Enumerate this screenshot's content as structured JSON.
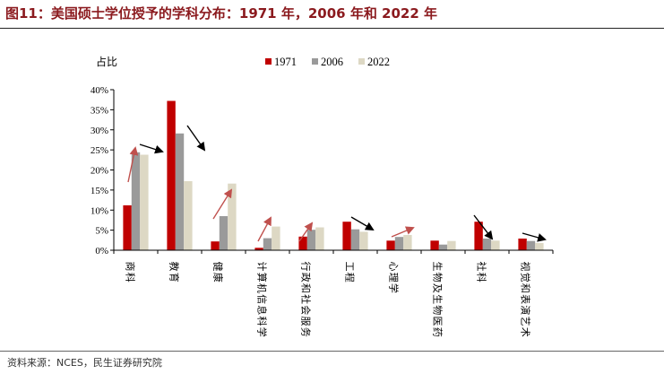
{
  "header": {
    "title": "图11：美国硕士学位授予的学科分布：1971 年，2006 年和 2022 年"
  },
  "footer": {
    "source": "资料来源：NCES，民生证券研究院"
  },
  "colors": {
    "title": "#8b1a1e",
    "s1971": "#c00000",
    "s2006": "#9a9a9a",
    "s2022": "#ddd8c4",
    "arrow_up": "#c0504d",
    "arrow_down": "#000000"
  },
  "chart_data": {
    "type": "bar",
    "title": "",
    "xlabel": "",
    "ylabel": "占比",
    "ylim": [
      0,
      40
    ],
    "y_ticks": [
      "0%",
      "5%",
      "10%",
      "15%",
      "20%",
      "25%",
      "30%",
      "35%",
      "40%"
    ],
    "grid": false,
    "legend_position": "top",
    "categories": [
      "商科",
      "教育",
      "健康",
      "计算机信息科学",
      "行政和社会服务",
      "工程",
      "心理学",
      "生物及生物医药",
      "社科",
      "视觉和表演艺术"
    ],
    "series": [
      {
        "name": "1971",
        "color": "#c00000",
        "values": [
          11.2,
          37.2,
          2.2,
          0.6,
          3.4,
          7.1,
          2.4,
          2.4,
          7.1,
          2.9
        ]
      },
      {
        "name": "2006",
        "color": "#9a9a9a",
        "values": [
          24.4,
          29.1,
          8.5,
          3.0,
          5.1,
          5.2,
          3.3,
          1.4,
          2.9,
          2.3
        ]
      },
      {
        "name": "2022",
        "color": "#ddd8c4",
        "values": [
          23.8,
          17.2,
          16.6,
          5.9,
          5.7,
          4.6,
          3.8,
          2.3,
          2.4,
          1.8
        ]
      }
    ],
    "annotations": [
      {
        "category": "商科",
        "direction": "up"
      },
      {
        "category": "商科",
        "direction": "down"
      },
      {
        "category": "教育",
        "direction": "down"
      },
      {
        "category": "健康",
        "direction": "up"
      },
      {
        "category": "计算机信息科学",
        "direction": "up"
      },
      {
        "category": "行政和社会服务",
        "direction": "up"
      },
      {
        "category": "工程",
        "direction": "down"
      },
      {
        "category": "心理学",
        "direction": "up"
      },
      {
        "category": "社科",
        "direction": "down"
      },
      {
        "category": "视觉和表演艺术",
        "direction": "down"
      }
    ]
  }
}
